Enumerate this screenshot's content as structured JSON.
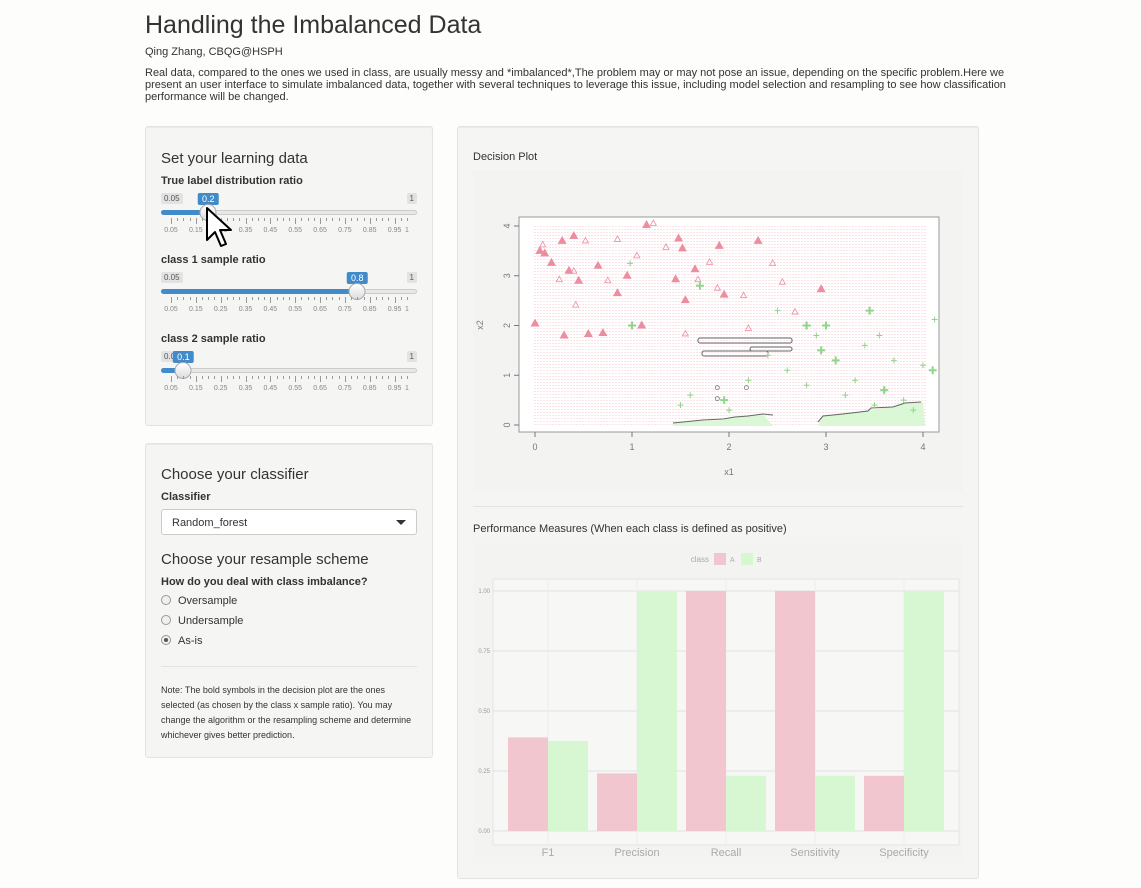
{
  "header": {
    "title": "Handling the Imbalanced Data",
    "author": "Qing Zhang, CBQG@HSPH",
    "intro": "Real data, compared to the ones we used in class, are usually messy and *imbalanced*,The problem may or may not pose an issue, depending on the specific problem.Here we present an user interface to simulate imbalanced data, together with several techniques to leverage this issue, including model selection and resampling to see how classification performance will be changed."
  },
  "learning": {
    "heading": "Set your learning data",
    "sliders": [
      {
        "label": "True label distribution ratio",
        "min_label": "0.05",
        "max_label": "1",
        "value_label": "0.2",
        "value": 0.2
      },
      {
        "label": "class 1 sample ratio",
        "min_label": "0.05",
        "max_label": "1",
        "value_label": "0.8",
        "value": 0.8
      },
      {
        "label": "class 2 sample ratio",
        "min_label": "0.05",
        "max_label": "1",
        "value_label": "0.1",
        "value": 0.1
      }
    ],
    "tick_labels": [
      "0.05",
      "0.15",
      "0.25",
      "0.35",
      "0.45",
      "0.55",
      "0.65",
      "0.75",
      "0.85",
      "0.95",
      "1"
    ]
  },
  "classifier": {
    "heading": "Choose your classifier",
    "label": "Classifier",
    "selected": "Random_forest",
    "resample_heading": "Choose your resample scheme",
    "resample_label": "How do you deal with class imbalance?",
    "options": [
      "Oversample",
      "Undersample",
      "As-is"
    ],
    "selected_option": "As-is",
    "note": "Note: The bold symbols in the decision plot are the ones selected (as chosen by the class x sample ratio). You may change the algorithm or the resampling scheme and determine whichever gives better prediction."
  },
  "plots": {
    "decision_title": "Decision Plot",
    "performance_title": "Performance Measures (When each class is defined as positive)"
  },
  "colors": {
    "class_a": "#f2c6cf",
    "class_b": "#d6f7d2",
    "point_a": "#ec8ea0",
    "point_b": "#8fd68a",
    "accent": "#428bca"
  },
  "chart_data": [
    {
      "type": "scatter",
      "title": "",
      "xlabel": "x1",
      "ylabel": "x2",
      "xlim": [
        0,
        4
      ],
      "ylim": [
        0,
        4
      ],
      "x_ticks": [
        "0",
        "1",
        "2",
        "3",
        "4"
      ],
      "y_ticks": [
        "0",
        "1",
        "2",
        "3",
        "4"
      ]
    },
    {
      "type": "bar",
      "title": "",
      "legend_title": "class",
      "legend_position": "top",
      "categories": [
        "F1",
        "Precision",
        "Recall",
        "Sensitivity",
        "Specificity"
      ],
      "series": [
        {
          "name": "A",
          "values": [
            0.39,
            0.24,
            1.0,
            1.0,
            0.23
          ]
        },
        {
          "name": "B",
          "values": [
            0.375,
            1.0,
            0.23,
            0.23,
            1.0
          ]
        }
      ],
      "ylim": [
        0,
        1
      ],
      "y_ticks": [
        "0.00",
        "0.25",
        "0.50",
        "0.75",
        "1.00"
      ]
    }
  ]
}
